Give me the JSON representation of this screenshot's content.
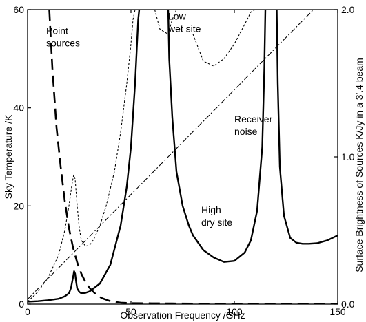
{
  "chart_data": {
    "type": "line",
    "xlabel": "Observation Frequency /GHz",
    "ylabel": "Sky Temperature /K",
    "y2label": "Surface Brightness of Sources  K/Jy in a 3′.4 beam",
    "xlim": [
      0,
      150
    ],
    "ylim": [
      0,
      60
    ],
    "y2lim": [
      0,
      2.0
    ],
    "x_ticks": [
      0,
      50,
      100,
      150
    ],
    "y_ticks": [
      0,
      20,
      40,
      60
    ],
    "y2_ticks": [
      "0.0",
      "1.0",
      "2.0"
    ],
    "grid": false,
    "annotations": [
      {
        "lines": [
          "Point",
          "sources"
        ],
        "x": 9,
        "y": 55
      },
      {
        "lines": [
          "Low",
          "wet site"
        ],
        "x": 68,
        "y": 58
      },
      {
        "lines": [
          "Receiver",
          "noise"
        ],
        "x": 100,
        "y": 37
      },
      {
        "lines": [
          "High",
          "dry site"
        ],
        "x": 84,
        "y": 18.5
      }
    ],
    "series": [
      {
        "id": "point_sources",
        "style": "long-dash",
        "x": [
          10.5,
          12,
          14,
          16,
          18,
          20,
          22,
          24,
          26,
          28,
          30,
          33,
          36,
          40,
          45,
          50,
          60,
          70,
          80,
          100,
          120,
          150
        ],
        "y": [
          60,
          48,
          36,
          28,
          21,
          15.5,
          11.5,
          8.5,
          6.2,
          4.5,
          3.3,
          2.0,
          1.2,
          0.6,
          0.3,
          0.2,
          0.15,
          0.12,
          0.1,
          0.1,
          0.1,
          0.1
        ]
      },
      {
        "id": "low_wet_site",
        "style": "short-dash",
        "x": [
          0,
          5,
          10,
          15,
          18,
          20,
          21.5,
          22.3,
          23,
          24,
          25,
          26,
          28,
          30,
          32,
          35,
          38,
          42,
          45,
          48,
          50,
          51,
          52,
          53,
          60,
          61.5,
          64,
          68,
          70,
          72,
          75,
          80,
          85,
          90,
          95,
          100,
          105,
          108,
          110
        ],
        "y": [
          0.5,
          2.5,
          5.5,
          10,
          15,
          20,
          24.5,
          26.3,
          25.5,
          20,
          15.5,
          13,
          11.8,
          12,
          13.2,
          16,
          20,
          27,
          35,
          45,
          53,
          58,
          60,
          60,
          null,
          60,
          56,
          55,
          58,
          60,
          null,
          55,
          49.5,
          48.5,
          50,
          53,
          57,
          59.5,
          60
        ]
      },
      {
        "id": "receiver_noise",
        "style": "dash-dot",
        "x": [
          0,
          150
        ],
        "y": [
          1,
          65
        ]
      },
      {
        "id": "high_dry_site",
        "style": "solid-thick",
        "x": [
          0,
          5,
          10,
          15,
          18,
          20,
          21,
          22,
          22.5,
          23,
          23.5,
          24,
          25,
          26,
          28,
          30,
          35,
          40,
          45,
          48,
          50,
          52,
          53.5,
          54,
          null,
          68,
          68.5,
          70,
          72,
          75,
          78,
          80,
          85,
          90,
          95,
          100,
          105,
          108,
          111,
          113.5,
          114.5,
          115,
          null,
          120.5,
          121,
          122,
          124,
          127,
          130,
          133,
          136,
          140,
          145,
          150
        ],
        "y": [
          0.5,
          0.6,
          0.8,
          1.1,
          1.6,
          2.2,
          3.3,
          5.5,
          6.7,
          6.2,
          4.5,
          3.2,
          2.5,
          2.2,
          2.3,
          2.6,
          4.2,
          8,
          16,
          24,
          32,
          45,
          58,
          60,
          null,
          60,
          50,
          38,
          27,
          20,
          16,
          14,
          11,
          9.5,
          8.6,
          8.8,
          10.5,
          13,
          19,
          32,
          48,
          60,
          null,
          60,
          45,
          28,
          18,
          13.5,
          12.5,
          12.3,
          12.3,
          12.4,
          13,
          14
        ]
      }
    ]
  }
}
